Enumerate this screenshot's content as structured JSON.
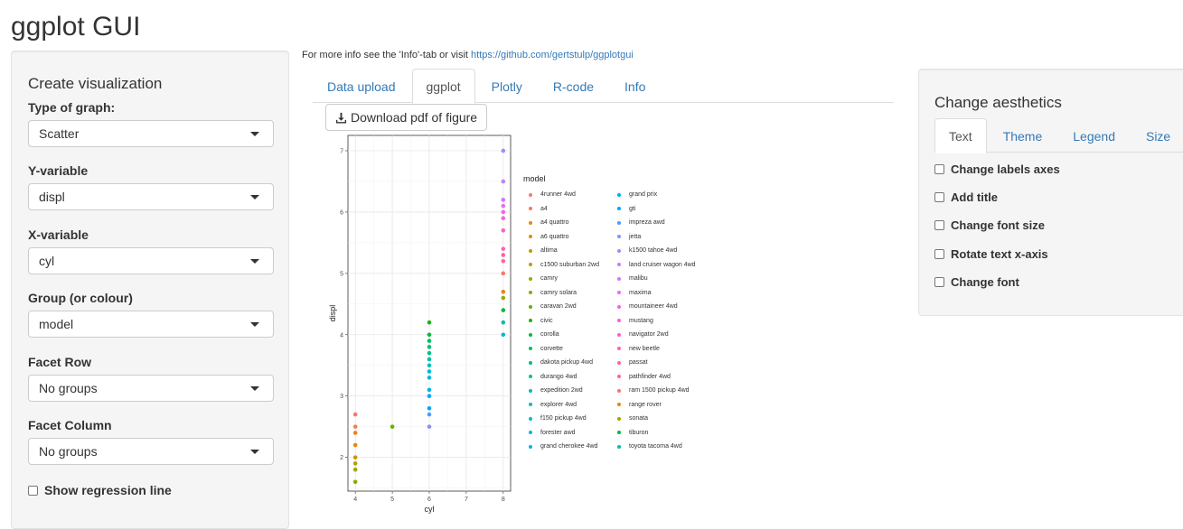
{
  "app_title": "ggplot GUI",
  "sidebar": {
    "heading": "Create visualization",
    "fields": [
      {
        "label": "Type of graph:",
        "value": "Scatter"
      },
      {
        "label": "Y-variable",
        "value": "displ"
      },
      {
        "label": "X-variable",
        "value": "cyl"
      },
      {
        "label": "Group (or colour)",
        "value": "model"
      },
      {
        "label": "Facet Row",
        "value": "No groups"
      },
      {
        "label": "Facet Column",
        "value": "No groups"
      }
    ],
    "regression_label": "Show regression line"
  },
  "info": {
    "text": "For more info see the 'Info'-tab or visit ",
    "link": "https://github.com/gertstulp/ggplotgui"
  },
  "main_tabs": [
    "Data upload",
    "ggplot",
    "Plotly",
    "R-code",
    "Info"
  ],
  "download_label": "Download pdf of figure",
  "right_panel": {
    "heading": "Change aesthetics",
    "tabs": [
      "Text",
      "Theme",
      "Legend",
      "Size"
    ],
    "checks": [
      "Change labels axes",
      "Add title",
      "Change font size",
      "Rotate text x-axis",
      "Change font"
    ]
  },
  "chart_data": {
    "type": "scatter",
    "xlabel": "cyl",
    "ylabel": "displ",
    "xlim": [
      3.8,
      8.2
    ],
    "ylim": [
      1.45,
      7.25
    ],
    "x_ticks": [
      4,
      5,
      6,
      7,
      8
    ],
    "y_ticks": [
      2,
      3,
      4,
      5,
      6,
      7
    ],
    "grid": true,
    "legend_title": "model",
    "legend_placement": "right",
    "legend_left": [
      "4runner 4wd",
      "a4",
      "a4 quattro",
      "a6 quattro",
      "altima",
      "c1500 suburban 2wd",
      "camry",
      "camry solara",
      "caravan 2wd",
      "civic",
      "corolla",
      "corvette",
      "dakota pickup 4wd",
      "durango 4wd",
      "expedition 2wd",
      "explorer 4wd",
      "f150 pickup 4wd",
      "forester awd",
      "grand cherokee 4wd"
    ],
    "legend_right": [
      "grand prix",
      "gti",
      "impreza awd",
      "jetta",
      "k1500 tahoe 4wd",
      "land cruiser wagon 4wd",
      "malibu",
      "maxima",
      "mountaineer 4wd",
      "mustang",
      "navigator 2wd",
      "new beetle",
      "passat",
      "pathfinder 4wd",
      "ram 1500 pickup 4wd",
      "range rover",
      "sonata",
      "tiburon",
      "toyota tacoma 4wd"
    ],
    "colors": [
      "#F8766D",
      "#F27D52",
      "#E7851E",
      "#DA8E00",
      "#CA9700",
      "#B79F00",
      "#A0A600",
      "#86AC00",
      "#62B200",
      "#1CB600",
      "#00BA42",
      "#00BD5F",
      "#00C078",
      "#00C08E",
      "#00C1A3",
      "#00BFB8",
      "#00BCCA",
      "#00B8DA",
      "#00B3E9",
      "#00ACF5",
      "#00A5FF",
      "#4E9BFF",
      "#8491FF",
      "#A488FF",
      "#BE80FF",
      "#D177FF",
      "#E16FF5",
      "#ED68E9",
      "#F663D9",
      "#FC61C8",
      "#FF61B5",
      "#FF63A0",
      "#FF6889",
      "#F8766D",
      "#E7851E",
      "#A0A600",
      "#00BA42",
      "#00C1A3",
      "#00B8DA"
    ],
    "points": [
      {
        "x": 4,
        "y": 2.7
      },
      {
        "x": 4,
        "y": 2.5
      },
      {
        "x": 4,
        "y": 2.4
      },
      {
        "x": 4,
        "y": 2.2
      },
      {
        "x": 4,
        "y": 2.0
      },
      {
        "x": 4,
        "y": 1.9
      },
      {
        "x": 4,
        "y": 1.8
      },
      {
        "x": 4,
        "y": 1.6
      },
      {
        "x": 5,
        "y": 2.5
      },
      {
        "x": 6,
        "y": 4.2
      },
      {
        "x": 6,
        "y": 4.0
      },
      {
        "x": 6,
        "y": 3.9
      },
      {
        "x": 6,
        "y": 3.8
      },
      {
        "x": 6,
        "y": 3.7
      },
      {
        "x": 6,
        "y": 3.6
      },
      {
        "x": 6,
        "y": 3.5
      },
      {
        "x": 6,
        "y": 3.4
      },
      {
        "x": 6,
        "y": 3.3
      },
      {
        "x": 6,
        "y": 3.1
      },
      {
        "x": 6,
        "y": 3.0
      },
      {
        "x": 6,
        "y": 2.8
      },
      {
        "x": 6,
        "y": 2.7
      },
      {
        "x": 6,
        "y": 2.5
      },
      {
        "x": 8,
        "y": 7.0
      },
      {
        "x": 8,
        "y": 6.5
      },
      {
        "x": 8,
        "y": 6.2
      },
      {
        "x": 8,
        "y": 6.1
      },
      {
        "x": 8,
        "y": 6.0
      },
      {
        "x": 8,
        "y": 5.9
      },
      {
        "x": 8,
        "y": 5.7
      },
      {
        "x": 8,
        "y": 5.4
      },
      {
        "x": 8,
        "y": 5.3
      },
      {
        "x": 8,
        "y": 5.2
      },
      {
        "x": 8,
        "y": 5.0
      },
      {
        "x": 8,
        "y": 4.7
      },
      {
        "x": 8,
        "y": 4.6
      },
      {
        "x": 8,
        "y": 4.4
      },
      {
        "x": 8,
        "y": 4.2
      },
      {
        "x": 8,
        "y": 4.0
      }
    ]
  }
}
